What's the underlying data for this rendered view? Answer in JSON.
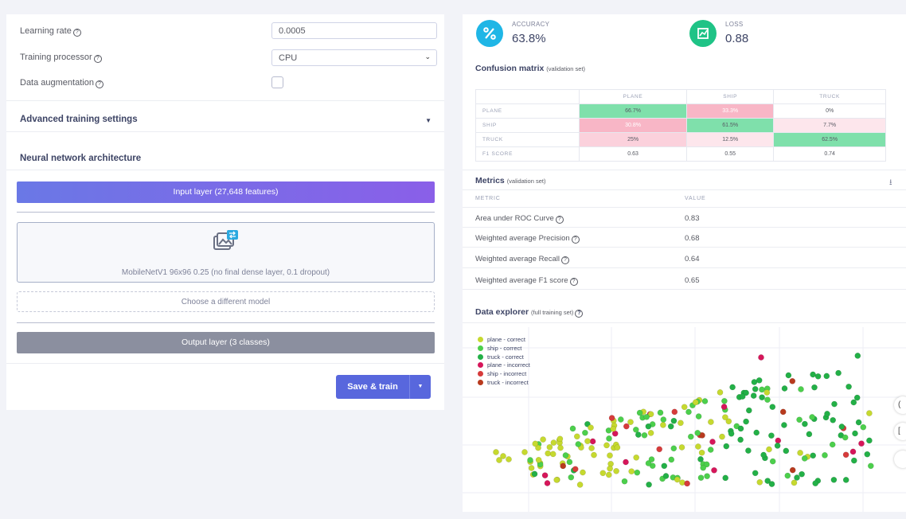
{
  "training": {
    "learning_rate_label": "Learning rate",
    "learning_rate_value": "0.0005",
    "processor_label": "Training processor",
    "processor_value": "CPU",
    "augmentation_label": "Data augmentation",
    "advanced_label": "Advanced training settings"
  },
  "architecture": {
    "title": "Neural network architecture",
    "input_layer": "Input layer (27,648 features)",
    "model_text": "MobileNetV1 96x96 0.25 (no final dense layer, 0.1 dropout)",
    "choose_model": "Choose a different model",
    "output_layer": "Output layer (3 classes)",
    "save_label": "Save & train"
  },
  "kpis": {
    "accuracy_label": "ACCURACY",
    "accuracy_value": "63.8%",
    "loss_label": "LOSS",
    "loss_value": "0.88"
  },
  "confusion": {
    "title": "Confusion matrix",
    "subtitle": "(validation set)",
    "columns": [
      "PLANE",
      "SHIP",
      "TRUCK"
    ],
    "rows": [
      {
        "label": "PLANE",
        "cells": [
          "66.7%",
          "33.3%",
          "0%"
        ]
      },
      {
        "label": "SHIP",
        "cells": [
          "30.8%",
          "61.5%",
          "7.7%"
        ]
      },
      {
        "label": "TRUCK",
        "cells": [
          "25%",
          "12.5%",
          "62.5%"
        ]
      },
      {
        "label": "F1 SCORE",
        "cells": [
          "0.63",
          "0.55",
          "0.74"
        ]
      }
    ],
    "cell_colors": [
      [
        "#7fe0ab",
        "#f8b6c6",
        "#ffffff"
      ],
      [
        "#f8b6c6",
        "#7fe0ab",
        "#fde6ec"
      ],
      [
        "#fbd1dc",
        "#fde6ec",
        "#7fe0ab"
      ],
      [
        "#ffffff",
        "#ffffff",
        "#ffffff"
      ]
    ]
  },
  "metrics": {
    "title": "Metrics",
    "subtitle": "(validation set)",
    "col_metric": "METRIC",
    "col_value": "VALUE",
    "rows": [
      {
        "name": "Area under ROC Curve",
        "value": "0.83"
      },
      {
        "name": "Weighted average Precision",
        "value": "0.68"
      },
      {
        "name": "Weighted average Recall",
        "value": "0.64"
      },
      {
        "name": "Weighted average F1 score",
        "value": "0.65"
      }
    ]
  },
  "explorer": {
    "title": "Data explorer",
    "subtitle": "(full training set)",
    "legend": [
      {
        "label": "plane - correct",
        "color": "#c6d92f"
      },
      {
        "label": "ship - correct",
        "color": "#4ccf4c"
      },
      {
        "label": "truck - correct",
        "color": "#23b047"
      },
      {
        "label": "plane - incorrect",
        "color": "#d6165a"
      },
      {
        "label": "ship - incorrect",
        "color": "#d63b3b"
      },
      {
        "label": "truck - incorrect",
        "color": "#b83a1e"
      }
    ]
  },
  "edge_buttons": [
    "(",
    "[",
    ""
  ]
}
